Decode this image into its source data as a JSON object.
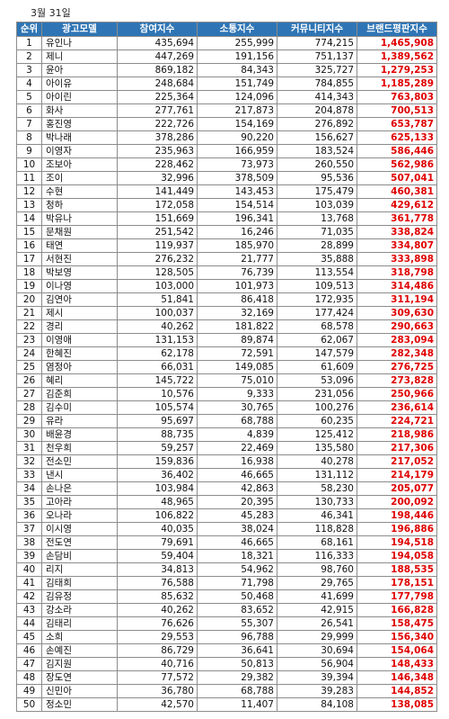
{
  "date": "3월 31일",
  "headers": [
    "순위",
    "광고모델",
    "참여지수",
    "소통지수",
    "커뮤니티지수",
    "브랜드평판지수"
  ],
  "rows": [
    [
      "1",
      "유인나",
      "435,694",
      "255,999",
      "774,215",
      "1,465,908"
    ],
    [
      "2",
      "제니",
      "447,269",
      "191,156",
      "751,137",
      "1,389,562"
    ],
    [
      "3",
      "윤아",
      "869,182",
      "84,343",
      "325,727",
      "1,279,253"
    ],
    [
      "4",
      "아이유",
      "248,684",
      "151,749",
      "784,855",
      "1,185,289"
    ],
    [
      "5",
      "아이린",
      "225,364",
      "124,096",
      "414,343",
      "763,803"
    ],
    [
      "6",
      "화사",
      "277,761",
      "217,873",
      "204,878",
      "700,513"
    ],
    [
      "7",
      "홍진영",
      "222,726",
      "154,169",
      "276,892",
      "653,787"
    ],
    [
      "8",
      "박나래",
      "378,286",
      "90,220",
      "156,627",
      "625,133"
    ],
    [
      "9",
      "이영자",
      "235,963",
      "166,959",
      "183,524",
      "586,446"
    ],
    [
      "10",
      "조보아",
      "228,462",
      "73,973",
      "260,550",
      "562,986"
    ],
    [
      "11",
      "조이",
      "32,996",
      "378,509",
      "95,536",
      "507,041"
    ],
    [
      "12",
      "수현",
      "141,449",
      "143,453",
      "175,479",
      "460,381"
    ],
    [
      "13",
      "청하",
      "172,058",
      "154,514",
      "103,039",
      "429,612"
    ],
    [
      "14",
      "박유나",
      "151,669",
      "196,341",
      "13,768",
      "361,778"
    ],
    [
      "15",
      "문채원",
      "251,542",
      "16,246",
      "71,035",
      "338,824"
    ],
    [
      "16",
      "태연",
      "119,937",
      "185,970",
      "28,899",
      "334,807"
    ],
    [
      "17",
      "서현진",
      "276,232",
      "21,777",
      "35,888",
      "333,898"
    ],
    [
      "18",
      "박보영",
      "128,505",
      "76,739",
      "113,554",
      "318,798"
    ],
    [
      "19",
      "이나영",
      "103,000",
      "101,973",
      "109,513",
      "314,486"
    ],
    [
      "20",
      "김연아",
      "51,841",
      "86,418",
      "172,935",
      "311,194"
    ],
    [
      "21",
      "제시",
      "100,037",
      "32,169",
      "177,424",
      "309,630"
    ],
    [
      "22",
      "경리",
      "40,262",
      "181,822",
      "68,578",
      "290,663"
    ],
    [
      "23",
      "이영애",
      "131,153",
      "89,874",
      "62,067",
      "283,094"
    ],
    [
      "24",
      "한혜진",
      "62,178",
      "72,591",
      "147,579",
      "282,348"
    ],
    [
      "25",
      "염정아",
      "66,031",
      "149,085",
      "61,609",
      "276,725"
    ],
    [
      "26",
      "혜리",
      "145,722",
      "75,010",
      "53,096",
      "273,828"
    ],
    [
      "27",
      "김준희",
      "10,576",
      "9,333",
      "231,056",
      "250,966"
    ],
    [
      "28",
      "김수미",
      "105,574",
      "30,765",
      "100,276",
      "236,614"
    ],
    [
      "29",
      "유라",
      "95,697",
      "68,788",
      "60,235",
      "224,721"
    ],
    [
      "30",
      "배윤경",
      "88,735",
      "4,839",
      "125,412",
      "218,986"
    ],
    [
      "31",
      "천우희",
      "59,257",
      "22,469",
      "135,580",
      "217,306"
    ],
    [
      "32",
      "전소민",
      "159,836",
      "16,938",
      "40,278",
      "217,052"
    ],
    [
      "33",
      "낸시",
      "36,402",
      "46,665",
      "131,112",
      "214,179"
    ],
    [
      "34",
      "손나은",
      "103,984",
      "42,863",
      "58,230",
      "205,077"
    ],
    [
      "35",
      "고아라",
      "48,965",
      "20,395",
      "130,733",
      "200,092"
    ],
    [
      "36",
      "오나라",
      "106,822",
      "45,283",
      "46,341",
      "198,446"
    ],
    [
      "37",
      "이시영",
      "40,035",
      "38,024",
      "118,828",
      "196,886"
    ],
    [
      "38",
      "전도연",
      "79,691",
      "46,665",
      "68,161",
      "194,518"
    ],
    [
      "39",
      "손담비",
      "59,404",
      "18,321",
      "116,333",
      "194,058"
    ],
    [
      "40",
      "리지",
      "34,813",
      "54,962",
      "98,760",
      "188,535"
    ],
    [
      "41",
      "김태희",
      "76,588",
      "71,798",
      "29,765",
      "178,151"
    ],
    [
      "42",
      "김유정",
      "85,632",
      "50,468",
      "41,699",
      "177,798"
    ],
    [
      "43",
      "강소라",
      "40,262",
      "83,652",
      "42,915",
      "166,828"
    ],
    [
      "44",
      "김태리",
      "76,626",
      "55,307",
      "26,541",
      "158,475"
    ],
    [
      "45",
      "소희",
      "29,553",
      "96,788",
      "29,999",
      "156,340"
    ],
    [
      "46",
      "손예진",
      "86,729",
      "36,641",
      "30,694",
      "154,064"
    ],
    [
      "47",
      "김지원",
      "40,716",
      "50,813",
      "56,904",
      "148,433"
    ],
    [
      "48",
      "장도연",
      "77,572",
      "29,382",
      "39,394",
      "146,348"
    ],
    [
      "49",
      "신민아",
      "36,780",
      "68,788",
      "39,283",
      "144,852"
    ],
    [
      "50",
      "정소민",
      "42,570",
      "11,407",
      "84,108",
      "138,085"
    ]
  ]
}
